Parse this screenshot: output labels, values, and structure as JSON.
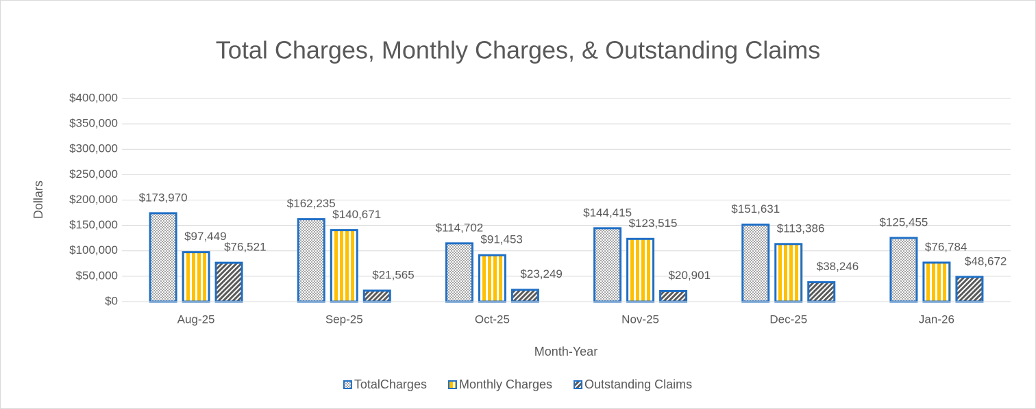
{
  "chart_data": {
    "type": "bar",
    "title": "Total Charges, Monthly Charges, & Outstanding Claims",
    "x_label": "Month-Year",
    "y_label": "Dollars",
    "categories": [
      "Aug-25",
      "Sep-25",
      "Oct-25",
      "Nov-25",
      "Dec-25",
      "Jan-26"
    ],
    "series": [
      {
        "name": "TotalCharges",
        "color": "#a6a6a6",
        "pattern": "crosshatch",
        "values": [
          173970,
          162235,
          114702,
          144415,
          151631,
          125455
        ],
        "value_labels": [
          "$173,970",
          "$162,235",
          "$114,702",
          "$144,415",
          "$151,631",
          "$125,455"
        ]
      },
      {
        "name": "Monthly Charges",
        "color": "#ffc000",
        "pattern": "vertical",
        "values": [
          97449,
          140671,
          91453,
          123515,
          113386,
          76784
        ],
        "value_labels": [
          "$97,449",
          "$140,671",
          "$91,453",
          "$123,515",
          "$113,386",
          "$76,784"
        ]
      },
      {
        "name": "Outstanding Claims",
        "color": "#595959",
        "pattern": "diagonal",
        "values": [
          76521,
          21565,
          23249,
          20901,
          38246,
          48672
        ],
        "value_labels": [
          "$76,521",
          "$21,565",
          "$23,249",
          "$20,901",
          "$38,246",
          "$48,672"
        ]
      }
    ],
    "border_color": "#1f6fc6",
    "ylim": [
      0,
      400000
    ],
    "yticks": [
      {
        "value": 0,
        "label": "$0"
      },
      {
        "value": 50000,
        "label": "$50,000"
      },
      {
        "value": 100000,
        "label": "$100,000"
      },
      {
        "value": 150000,
        "label": "$150,000"
      },
      {
        "value": 200000,
        "label": "$200,000"
      },
      {
        "value": 250000,
        "label": "$250,000"
      },
      {
        "value": 300000,
        "label": "$300,000"
      },
      {
        "value": 350000,
        "label": "$350,000"
      },
      {
        "value": 400000,
        "label": "$400,000"
      }
    ],
    "grid": true,
    "legend": "bottom"
  }
}
